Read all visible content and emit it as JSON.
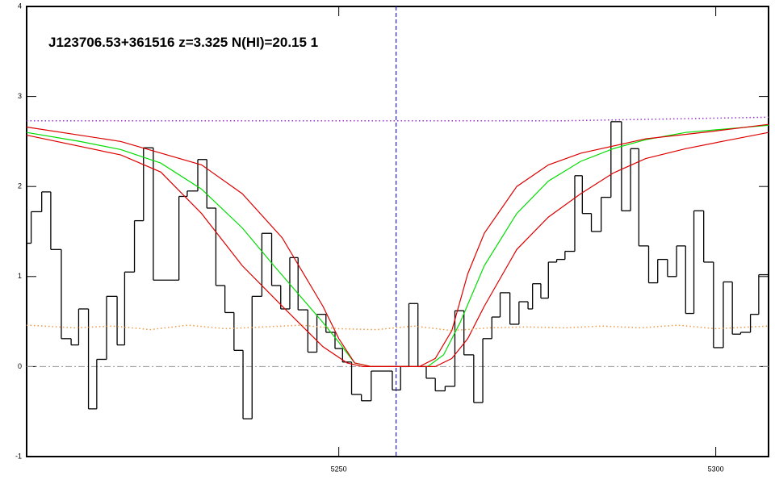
{
  "chart_data": {
    "type": "line",
    "title": "J123706.53+361516 z=3.325 N(HI)=20.15 1",
    "xlim": [
      5208.6,
      5307.0
    ],
    "ylim": [
      -1,
      4
    ],
    "xticks": [
      5250,
      5300
    ],
    "yticks": [
      -1,
      0,
      1,
      2,
      3,
      4
    ],
    "series": [
      {
        "style": "step",
        "color": "#000000",
        "x": [
          5208.6,
          5209.2,
          5210.6,
          5211.8,
          5213.2,
          5214.5,
          5215.5,
          5216.8,
          5217.9,
          5219.2,
          5220.6,
          5221.6,
          5222.9,
          5224.1,
          5225.4,
          5228.8,
          5229.9,
          5231.3,
          5232.5,
          5233.7,
          5234.9,
          5236.1,
          5237.3,
          5238.5,
          5239.8,
          5241.1,
          5242.3,
          5243.5,
          5244.6,
          5245.9,
          5247.1,
          5248.3,
          5249.5,
          5250.5,
          5251.7,
          5253.0,
          5254.3,
          5257.1,
          5258.2,
          5259.3,
          5260.5,
          5261.6,
          5262.8,
          5264.1,
          5265.4,
          5266.6,
          5267.9,
          5269.1,
          5270.3,
          5271.4,
          5272.7,
          5273.9,
          5275.1,
          5275.7,
          5276.8,
          5277.8,
          5278.9,
          5280.0,
          5281.3,
          5282.3,
          5283.5,
          5284.8,
          5286.1,
          5287.5,
          5288.7,
          5289.8,
          5291.1,
          5292.3,
          5293.6,
          5294.8,
          5296.0,
          5297.1,
          5298.4,
          5299.7,
          5301.0,
          5302.2,
          5303.3,
          5304.6,
          5305.7
        ],
        "values": [
          1.37,
          1.72,
          1.94,
          1.3,
          0.31,
          0.24,
          0.64,
          -0.47,
          0.08,
          0.78,
          0.24,
          1.05,
          1.62,
          2.43,
          0.96,
          1.89,
          1.95,
          2.3,
          1.76,
          0.9,
          0.6,
          0.18,
          -0.58,
          0.78,
          1.48,
          0.9,
          0.64,
          1.21,
          0.63,
          0.16,
          0.58,
          0.38,
          0.2,
          0.05,
          -0.31,
          -0.38,
          -0.05,
          -0.26,
          0.0,
          0.7,
          0.0,
          -0.13,
          -0.27,
          -0.22,
          0.62,
          0.13,
          -0.4,
          0.31,
          0.55,
          0.82,
          0.47,
          0.72,
          0.64,
          0.92,
          0.76,
          1.16,
          1.19,
          1.28,
          2.12,
          1.7,
          1.5,
          1.88,
          2.72,
          1.73,
          2.42,
          1.34,
          0.93,
          1.19,
          1.0,
          1.34,
          0.59,
          1.73,
          1.16,
          0.21,
          0.94,
          0.36,
          0.38,
          0.58,
          1.02
        ]
      },
      {
        "style": "solid",
        "color": "#00dd00",
        "x": [
          5208.6,
          5215.7,
          5221.1,
          5226.4,
          5231.8,
          5237.2,
          5241.4,
          5244.6,
          5247.9,
          5250.0,
          5252.1,
          5254.3,
          5261.8,
          5263.9,
          5266.1,
          5269.3,
          5273.6,
          5277.8,
          5282.1,
          5286.4,
          5290.7,
          5296.0,
          5301.4,
          5307.0
        ],
        "values": [
          2.6,
          2.5,
          2.41,
          2.26,
          1.97,
          1.54,
          1.12,
          0.81,
          0.49,
          0.27,
          0.04,
          0,
          0,
          0.13,
          0.49,
          1.12,
          1.7,
          2.06,
          2.28,
          2.42,
          2.52,
          2.6,
          2.64,
          2.68
        ]
      },
      {
        "style": "solid",
        "color": "#dd0000",
        "x": [
          5208.6,
          5221.1,
          5231.8,
          5237.2,
          5242.5,
          5247.9,
          5250.0,
          5252.1,
          5254.3,
          5260.7,
          5262.8,
          5265.0,
          5267.1,
          5269.3,
          5273.6,
          5277.8,
          5282.1,
          5290.7,
          5299.3,
          5307.0
        ],
        "values": [
          2.66,
          2.5,
          2.24,
          1.92,
          1.43,
          0.67,
          0.31,
          0.04,
          0,
          0,
          0.09,
          0.4,
          1.03,
          1.48,
          2.0,
          2.24,
          2.37,
          2.53,
          2.61,
          2.69
        ]
      },
      {
        "style": "solid",
        "color": "#dd0000",
        "x": [
          5208.6,
          5221.1,
          5226.4,
          5231.8,
          5237.2,
          5242.5,
          5247.9,
          5251.1,
          5253.2,
          5262.8,
          5265.0,
          5267.1,
          5269.3,
          5273.6,
          5277.8,
          5282.1,
          5286.4,
          5290.7,
          5296.0,
          5301.4,
          5307.0
        ],
        "values": [
          2.57,
          2.35,
          2.16,
          1.7,
          1.12,
          0.67,
          0.22,
          0.04,
          0,
          0,
          0.09,
          0.31,
          0.67,
          1.3,
          1.66,
          1.92,
          2.15,
          2.31,
          2.42,
          2.51,
          2.6
        ]
      },
      {
        "style": "dotted",
        "color": "#9933cc",
        "x": [
          5208.6,
          5280,
          5307.0
        ],
        "values": [
          2.73,
          2.73,
          2.77
        ]
      },
      {
        "style": "dotted",
        "color": "#ee9944",
        "x": [
          5208.6,
          5215,
          5220,
          5225,
          5230,
          5235,
          5240,
          5245,
          5250,
          5255,
          5260,
          5265,
          5270,
          5275,
          5280,
          5285,
          5290,
          5295,
          5300,
          5307.0
        ],
        "values": [
          0.46,
          0.43,
          0.45,
          0.41,
          0.46,
          0.42,
          0.44,
          0.46,
          0.42,
          0.41,
          0.45,
          0.4,
          0.43,
          0.44,
          0.43,
          0.45,
          0.43,
          0.46,
          0.42,
          0.45
        ]
      }
    ],
    "hlines": [
      {
        "y": 0,
        "color": "#999999"
      }
    ],
    "vlines": [
      {
        "x": 5257.6,
        "color": "#2222bb"
      }
    ]
  }
}
